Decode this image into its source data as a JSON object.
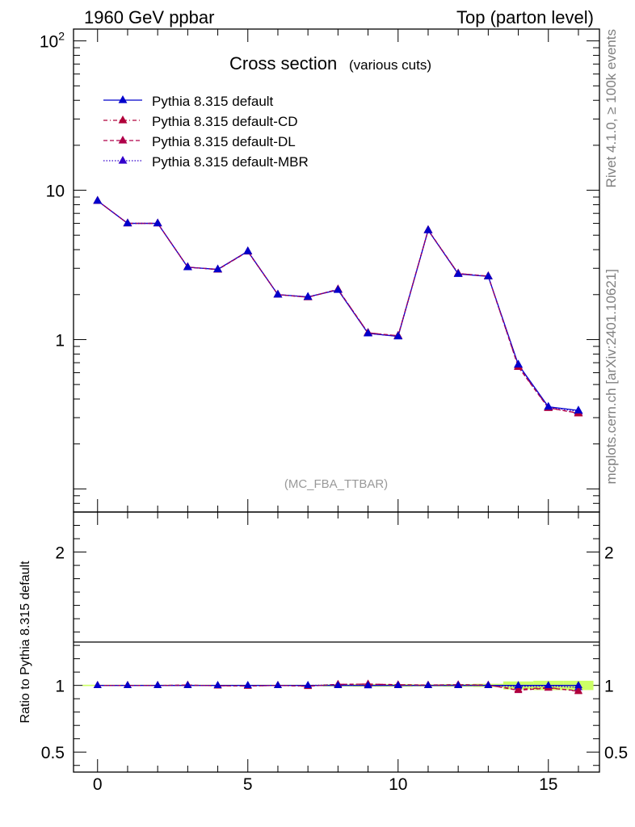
{
  "header": {
    "left": "1960 GeV ppbar",
    "right": "Top (parton level)"
  },
  "side_labels": {
    "rivet": "Rivet 4.1.0, ≥ 100k events",
    "mcplots": "mcplots.cern.ch [arXiv:2401.10621]"
  },
  "chart_data": {
    "type": "line",
    "title": "Cross section",
    "title_suffix": "(various cuts)",
    "watermark": "(MC_FBA_TTBAR)",
    "x": [
      0,
      1,
      2,
      3,
      4,
      5,
      6,
      7,
      8,
      9,
      10,
      11,
      12,
      13,
      14,
      15,
      16
    ],
    "xlim": [
      -0.8,
      16.7
    ],
    "ylim": [
      0.07,
      120
    ],
    "yscale": "log",
    "top_y_ticks": [
      "1",
      "10",
      "10^2"
    ],
    "x_ticks": [
      "0",
      "5",
      "10",
      "15"
    ],
    "series": [
      {
        "name": "Pythia 8.315 default",
        "color": "#0000cc",
        "dash": "solid",
        "values": [
          8.5,
          6.0,
          6.0,
          3.05,
          2.95,
          3.9,
          2.0,
          1.93,
          2.15,
          1.1,
          1.05,
          5.4,
          2.75,
          2.65,
          0.68,
          0.355,
          0.335
        ]
      },
      {
        "name": "Pythia 8.315 default-CD",
        "color": "#b0003a",
        "dash": "dashdot",
        "values": [
          8.5,
          6.0,
          6.0,
          3.05,
          2.95,
          3.9,
          2.0,
          1.92,
          2.17,
          1.11,
          1.06,
          5.4,
          2.77,
          2.65,
          0.66,
          0.35,
          0.32
        ]
      },
      {
        "name": "Pythia 8.315 default-DL",
        "color": "#b0004a",
        "dash": "dashed",
        "values": [
          8.5,
          6.0,
          6.0,
          3.06,
          2.94,
          3.88,
          2.0,
          1.92,
          2.17,
          1.11,
          1.06,
          5.42,
          2.77,
          2.66,
          0.655,
          0.348,
          0.322
        ]
      },
      {
        "name": "Pythia 8.315 default-MBR",
        "color": "#3300cc",
        "dash": "dotted",
        "values": [
          8.5,
          6.0,
          6.0,
          3.05,
          2.95,
          3.9,
          2.0,
          1.93,
          2.16,
          1.1,
          1.05,
          5.4,
          2.76,
          2.65,
          0.675,
          0.352,
          0.33
        ]
      }
    ],
    "ratio": {
      "ylabel": "Ratio to Pythia 8.315 default",
      "ylim": [
        0.35,
        2.3
      ],
      "y_ticks": [
        "0.5",
        "1",
        "2"
      ],
      "band_color": "#ccff66",
      "band_halfwidth": [
        0.005,
        0.005,
        0.005,
        0.005,
        0.005,
        0.005,
        0.005,
        0.005,
        0.008,
        0.01,
        0.01,
        0.008,
        0.01,
        0.012,
        0.03,
        0.035,
        0.035
      ],
      "series": [
        {
          "name": "Pythia 8.315 default",
          "values": [
            1,
            1,
            1,
            1,
            1,
            1,
            1,
            1,
            1,
            1,
            1,
            1,
            1,
            1,
            1,
            1,
            1
          ]
        },
        {
          "name": "Pythia 8.315 default-CD",
          "values": [
            1.0,
            1.0,
            1.0,
            1.0,
            0.998,
            0.995,
            1.0,
            0.993,
            1.008,
            1.01,
            1.005,
            1.0,
            1.005,
            1.0,
            0.97,
            0.985,
            0.955
          ]
        },
        {
          "name": "Pythia 8.315 default-DL",
          "values": [
            1.0,
            1.0,
            1.0,
            1.003,
            0.997,
            0.995,
            1.0,
            0.995,
            1.008,
            1.01,
            1.005,
            1.003,
            1.005,
            1.003,
            0.963,
            0.98,
            0.96
          ]
        },
        {
          "name": "Pythia 8.315 default-MBR",
          "values": [
            1.0,
            1.0,
            1.0,
            1.0,
            1.0,
            1.0,
            1.0,
            1.0,
            1.004,
            0.998,
            1.0,
            1.0,
            1.002,
            1.0,
            0.99,
            0.995,
            0.985
          ]
        }
      ]
    }
  }
}
